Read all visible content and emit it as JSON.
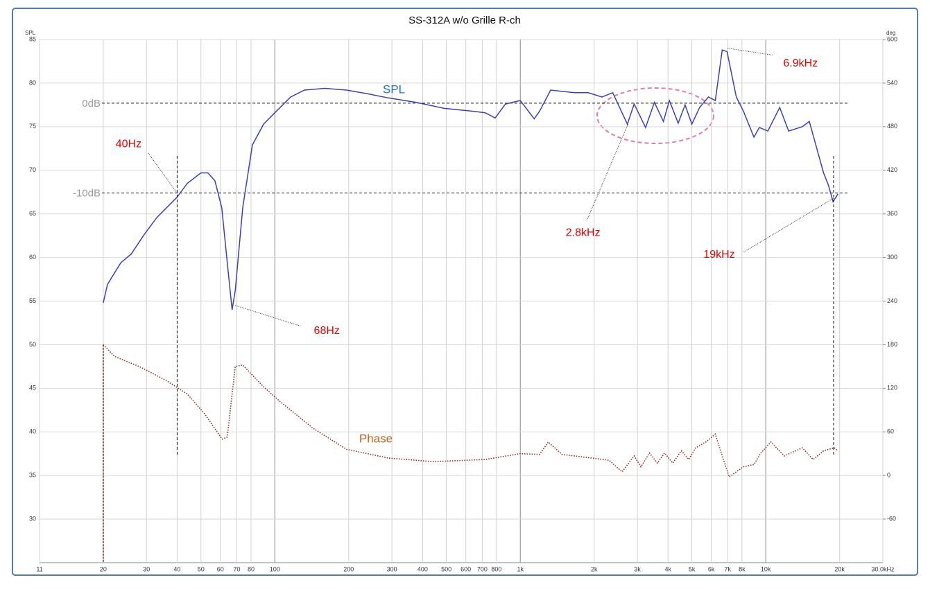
{
  "chart_data": {
    "type": "line",
    "title": "SS-312A w/o Grille R-ch",
    "ylabel": "SPL",
    "y2label": "deg",
    "xscale": "log",
    "grid": true,
    "xlim": [
      11,
      30000
    ],
    "ylim": [
      25,
      85
    ],
    "y2lim": [
      -120,
      600
    ],
    "xticks": [
      11,
      20,
      30,
      40,
      50,
      60,
      70,
      80,
      100,
      200,
      300,
      400,
      500,
      600,
      700,
      800,
      {
        "value": 1000,
        "label": "1k"
      },
      {
        "value": 2000,
        "label": "2k"
      },
      {
        "value": 3000,
        "label": "3k"
      },
      {
        "value": 4000,
        "label": "4k"
      },
      {
        "value": 5000,
        "label": "5k"
      },
      {
        "value": 6000,
        "label": "6k"
      },
      {
        "value": 7000,
        "label": "7k"
      },
      {
        "value": 8000,
        "label": "8k"
      },
      {
        "value": 10000,
        "label": "10k"
      },
      {
        "value": 20000,
        "label": "20k"
      },
      {
        "value": 30000,
        "label": "30.0kHz"
      }
    ],
    "yticks": [
      30,
      35,
      40,
      45,
      50,
      55,
      60,
      65,
      70,
      75,
      80,
      85
    ],
    "y2ticks": [
      -60,
      0,
      60,
      120,
      180,
      240,
      300,
      360,
      420,
      480,
      540,
      600
    ],
    "series": [
      {
        "name": "SPL",
        "color": "#3b3fb3",
        "x": [
          20,
          20.8,
          22.2,
          23.6,
          26,
          29.3,
          33.1,
          39.9,
          44,
          50,
          53.4,
          57,
          60.8,
          64,
          67,
          69,
          74,
          81,
          90,
          100,
          116,
          132,
          160,
          196,
          236,
          290,
          375,
          490,
          630,
          720,
          790,
          870,
          1000,
          1140,
          1200,
          1330,
          1660,
          1890,
          2150,
          2380,
          2730,
          2910,
          3240,
          3520,
          3830,
          4050,
          4400,
          4690,
          5000,
          5380,
          5840,
          6230,
          6650,
          6960,
          7590,
          8110,
          8950,
          9420,
          10200,
          11400,
          12400,
          14100,
          15050,
          16000,
          17200,
          18000,
          18800,
          19700
        ],
        "values": [
          54.8,
          56.9,
          58.2,
          59.4,
          60.4,
          62.6,
          64.6,
          66.9,
          68.5,
          69.7,
          69.7,
          68.8,
          65.7,
          59.4,
          54.0,
          56.2,
          65.7,
          72.9,
          75.3,
          76.6,
          78.4,
          79.2,
          79.4,
          79.2,
          78.8,
          78.3,
          77.8,
          77.1,
          76.8,
          76.6,
          76.0,
          77.6,
          78.0,
          75.9,
          76.8,
          79.2,
          78.9,
          78.9,
          78.4,
          78.9,
          75.3,
          77.6,
          74.9,
          77.8,
          75.6,
          78.0,
          75.4,
          77.5,
          75.3,
          77.2,
          78.4,
          78.0,
          83.8,
          83.6,
          78.4,
          76.8,
          73.8,
          74.9,
          74.5,
          77.2,
          74.5,
          75.0,
          75.6,
          72.9,
          69.7,
          68.3,
          66.4,
          67.3
        ]
      },
      {
        "name": "Phase",
        "color": "#8b2a20",
        "axis": "y2",
        "x": [
          20,
          22.2,
          28,
          36,
          44,
          52,
          61,
          64,
          69,
          74,
          90,
          104,
          143,
          196,
          290,
          440,
          720,
          1000,
          1200,
          1300,
          1480,
          2300,
          2600,
          2910,
          3100,
          3360,
          3620,
          3870,
          4180,
          4530,
          4860,
          5180,
          5700,
          6230,
          6650,
          7100,
          8110,
          8950,
          9550,
          10500,
          11900,
          14100,
          15600,
          17200,
          19000,
          19700
        ],
        "values": [
          180,
          164,
          150,
          131,
          112,
          84,
          50,
          53,
          150,
          152,
          122,
          103,
          65,
          36,
          24,
          19,
          22,
          30,
          29,
          46,
          29,
          21,
          5,
          27,
          12,
          31,
          17,
          31,
          17,
          34,
          22,
          38,
          46,
          57,
          27,
          -2,
          12,
          15,
          31,
          46,
          27,
          38,
          22,
          34,
          38,
          34
        ]
      }
    ],
    "reference_lines": [
      {
        "label": "0dB",
        "value": 77.7
      },
      {
        "label": "-10dB",
        "value": 67.4
      }
    ],
    "annotations": [
      {
        "text": "40Hz",
        "x": 40,
        "y": 67.4
      },
      {
        "text": "68Hz",
        "x": 69,
        "y": 54.5
      },
      {
        "text": "2.8kHz",
        "x": 2750,
        "y": 75.3
      },
      {
        "text": "6.9kHz",
        "x": 7000,
        "y": 84.0
      },
      {
        "text": "19kHz",
        "x": 18900,
        "y": 66.8
      }
    ]
  }
}
